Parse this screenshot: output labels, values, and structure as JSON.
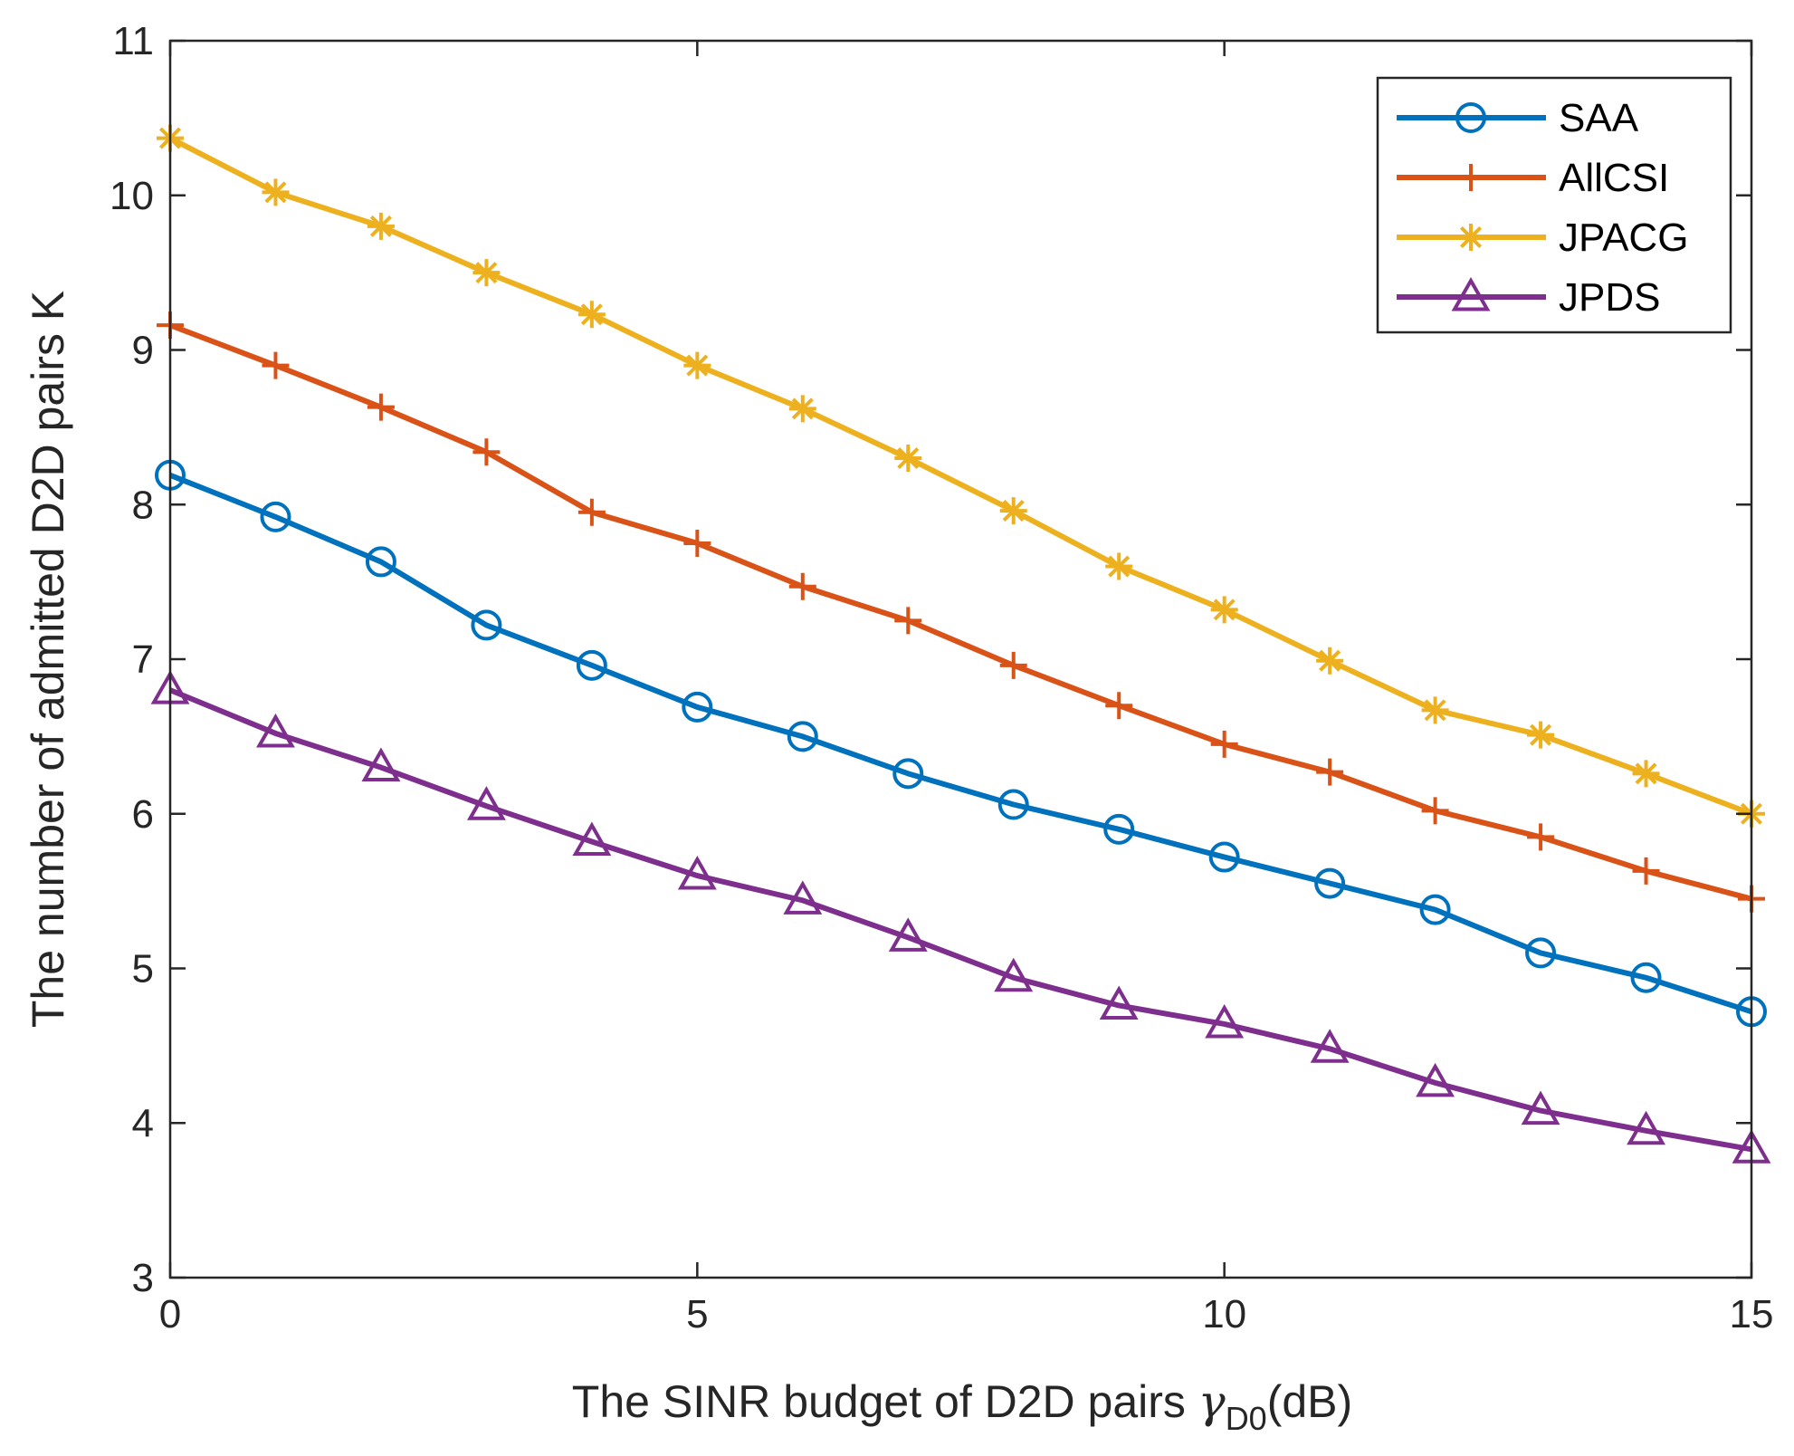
{
  "chart_data": {
    "type": "line",
    "title": "",
    "xlabel": "The SINR budget of D2D pairs ",
    "xlabel_symbol": "γ",
    "xlabel_subscript": "D0",
    "xlabel_suffix": "(dB)",
    "ylabel": "The number of admitted D2D pairs K",
    "xlim": [
      0,
      15
    ],
    "ylim": [
      3,
      11
    ],
    "xticks": [
      0,
      5,
      10,
      15
    ],
    "yticks": [
      3,
      4,
      5,
      6,
      7,
      8,
      9,
      10,
      11
    ],
    "grid": false,
    "legend_position": "top-right",
    "x": [
      0,
      1,
      2,
      3,
      4,
      5,
      6,
      7,
      8,
      9,
      10,
      11,
      12,
      13,
      14,
      15
    ],
    "series": [
      {
        "name": "SAA",
        "color": "#0072BD",
        "marker": "circle",
        "values": [
          8.19,
          7.92,
          7.63,
          7.22,
          6.96,
          6.69,
          6.5,
          6.26,
          6.06,
          5.9,
          5.72,
          5.55,
          5.38,
          5.1,
          4.94,
          4.72
        ]
      },
      {
        "name": "AllCSI",
        "color": "#D95319",
        "marker": "plus",
        "values": [
          9.16,
          8.9,
          8.63,
          8.34,
          7.95,
          7.75,
          7.47,
          7.25,
          6.96,
          6.7,
          6.45,
          6.27,
          6.02,
          5.85,
          5.63,
          5.45
        ]
      },
      {
        "name": "JPACG",
        "color": "#EDB120",
        "marker": "asterisk",
        "values": [
          10.37,
          10.02,
          9.8,
          9.5,
          9.23,
          8.9,
          8.62,
          8.3,
          7.96,
          7.6,
          7.32,
          6.99,
          6.67,
          6.51,
          6.26,
          6.0
        ]
      },
      {
        "name": "JPDS",
        "color": "#7E2F8E",
        "marker": "triangle",
        "values": [
          6.8,
          6.52,
          6.3,
          6.05,
          5.82,
          5.6,
          5.44,
          5.2,
          4.94,
          4.76,
          4.64,
          4.48,
          4.26,
          4.08,
          3.95,
          3.83
        ]
      }
    ]
  }
}
